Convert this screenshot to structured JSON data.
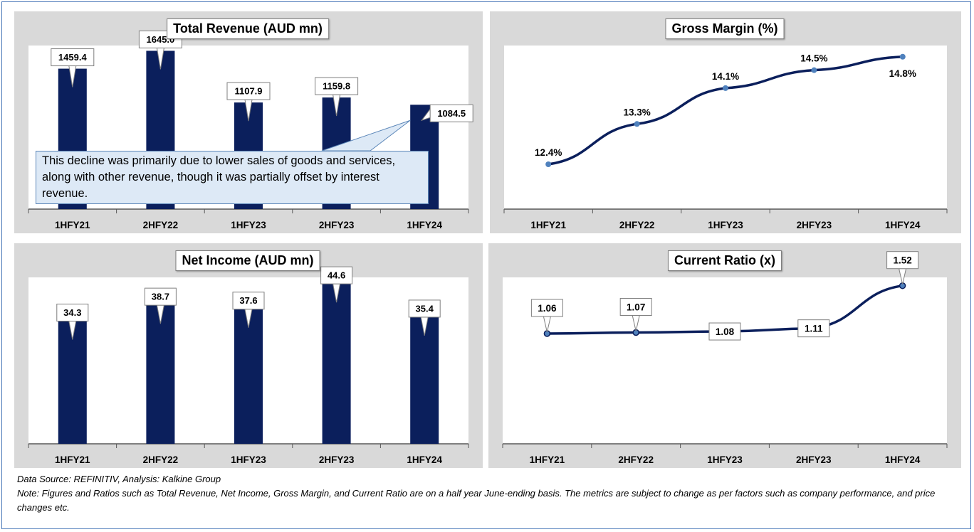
{
  "chart_data": [
    {
      "type": "bar",
      "title": "Total Revenue (AUD mn)",
      "categories": [
        "1HFY21",
        "2HFY22",
        "1HFY23",
        "2HFY23",
        "1HFY24"
      ],
      "values": [
        1459.4,
        1645.0,
        1107.9,
        1159.8,
        1084.5
      ],
      "data_labels": [
        "1459.4",
        "1645.0",
        "1107.9",
        "1159.8",
        "1084.5"
      ],
      "ylim": [
        0,
        1700
      ],
      "color": "#0b1f5c",
      "annotation": "This decline was primarily due to lower sales of goods and services, along with other revenue, though it was partially offset by interest revenue."
    },
    {
      "type": "line",
      "title": "Gross Margin (%)",
      "categories": [
        "1HFY21",
        "2HFY22",
        "1HFY23",
        "2HFY23",
        "1HFY24"
      ],
      "values": [
        12.4,
        13.3,
        14.1,
        14.5,
        14.8
      ],
      "data_labels": [
        "12.4%",
        "13.3%",
        "14.1%",
        "14.5%",
        "14.8%"
      ],
      "ylim": [
        11.4,
        15.05
      ],
      "color": "#0b1f5c",
      "marker_color": "#4f81bd"
    },
    {
      "type": "bar",
      "title": "Net Income (AUD mn)",
      "categories": [
        "1HFY21",
        "2HFY22",
        "1HFY23",
        "2HFY23",
        "1HFY24"
      ],
      "values": [
        34.3,
        38.7,
        37.6,
        44.6,
        35.4
      ],
      "data_labels": [
        "34.3",
        "38.7",
        "37.6",
        "44.6",
        "35.4"
      ],
      "ylim": [
        0,
        46
      ],
      "color": "#0b1f5c"
    },
    {
      "type": "line",
      "title": "Current Ratio (x)",
      "categories": [
        "1HFY21",
        "2HFY22",
        "1HFY23",
        "2HFY23",
        "1HFY24"
      ],
      "values": [
        1.06,
        1.07,
        1.08,
        1.11,
        1.52
      ],
      "data_labels": [
        "1.06",
        "1.07",
        "1.08",
        "1.11",
        "1.52"
      ],
      "ylim": [
        0.0,
        1.6
      ],
      "color": "#0b1f5c",
      "marker_color": "#4f81bd"
    }
  ],
  "footer": {
    "source": "Data Source: REFINITIV, Analysis: Kalkine Group",
    "note": "Note: Figures and Ratios such as Total Revenue, Net Income, Gross Margin, and Current Ratio are on a half year June-ending basis. The metrics are subject to change as per factors such as company performance, and price changes etc."
  }
}
